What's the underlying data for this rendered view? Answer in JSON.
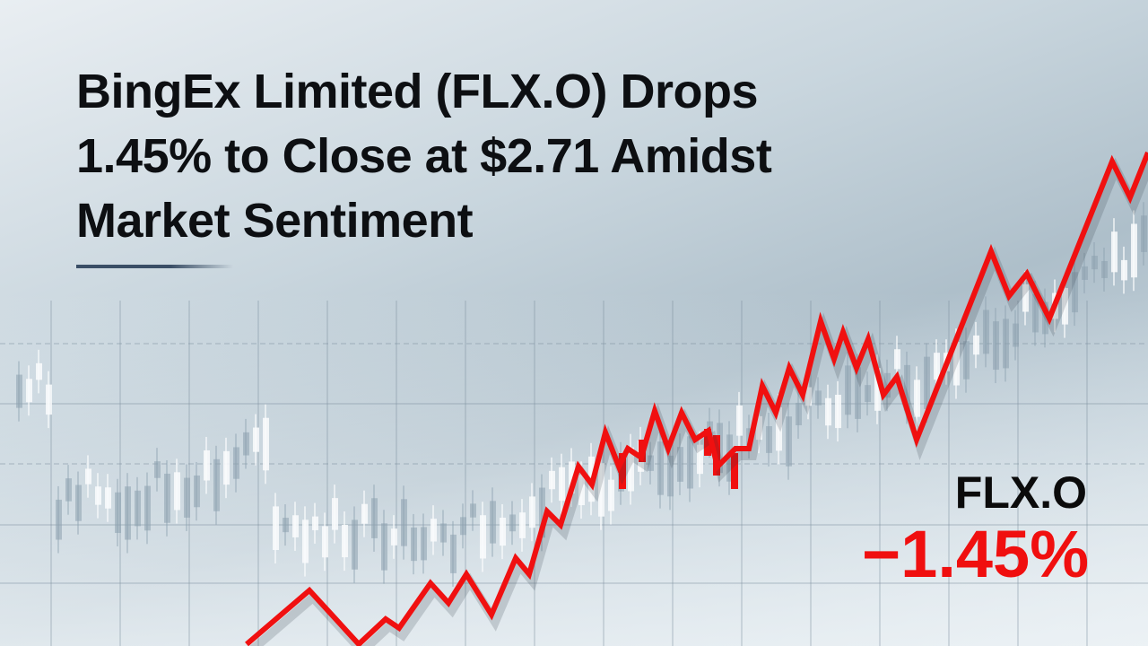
{
  "headline": {
    "lines": [
      "BingEx Limited (FLX.O) Drops",
      "1.45% to Close at $2.71 Amidst",
      "Market Sentiment"
    ]
  },
  "badge": {
    "ticker": "FLX.O",
    "change": "−1.45%"
  },
  "colors": {
    "line": "#f01010",
    "headline": "#0d0f12",
    "change": "#f00f0f",
    "accent_rule": "#3a4e66"
  }
}
